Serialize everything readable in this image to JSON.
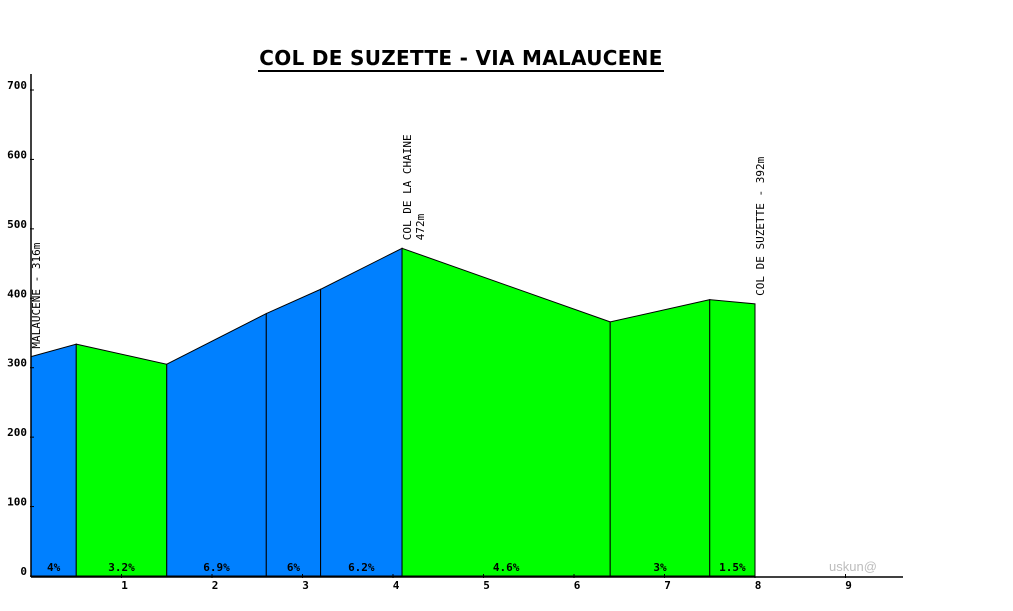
{
  "chart_data": {
    "type": "area",
    "title": "COL DE SUZETTE - VIA MALAUCENE",
    "xlabel": "",
    "ylabel": "",
    "xlim": [
      0,
      9.6
    ],
    "ylim": [
      0,
      700
    ],
    "x_ticks": [
      1,
      2,
      3,
      4,
      5,
      6,
      7,
      8,
      9
    ],
    "y_ticks": [
      0,
      100,
      200,
      300,
      400,
      500,
      600,
      700
    ],
    "grid": false,
    "colors": {
      "blue": "#0080ff",
      "green": "#00ff00",
      "outline": "#000000"
    },
    "profile": [
      {
        "x": 0.0,
        "y": 316
      },
      {
        "x": 0.5,
        "y": 334
      },
      {
        "x": 1.5,
        "y": 305
      },
      {
        "x": 2.6,
        "y": 378
      },
      {
        "x": 3.2,
        "y": 413
      },
      {
        "x": 4.1,
        "y": 472
      },
      {
        "x": 6.4,
        "y": 366
      },
      {
        "x": 7.5,
        "y": 398
      },
      {
        "x": 8.0,
        "y": 392
      }
    ],
    "segments": [
      {
        "grade": "4%",
        "color": "blue"
      },
      {
        "grade": "3.2%",
        "color": "green"
      },
      {
        "grade": "6.9%",
        "color": "blue"
      },
      {
        "grade": "6%",
        "color": "blue"
      },
      {
        "grade": "6.2%",
        "color": "blue"
      },
      {
        "grade": "4.6%",
        "color": "green"
      },
      {
        "grade": "3%",
        "color": "green"
      },
      {
        "grade": "1.5%",
        "color": "green"
      }
    ],
    "annotations": [
      {
        "lines": [
          "MALAUCENE - 316m"
        ],
        "x": 0.0
      },
      {
        "lines": [
          "COL DE LA CHAINE",
          "472m"
        ],
        "x": 4.1
      },
      {
        "lines": [
          "COL DE SUZETTE - 392m"
        ],
        "x": 8.0
      }
    ]
  },
  "watermark": "uskun@"
}
